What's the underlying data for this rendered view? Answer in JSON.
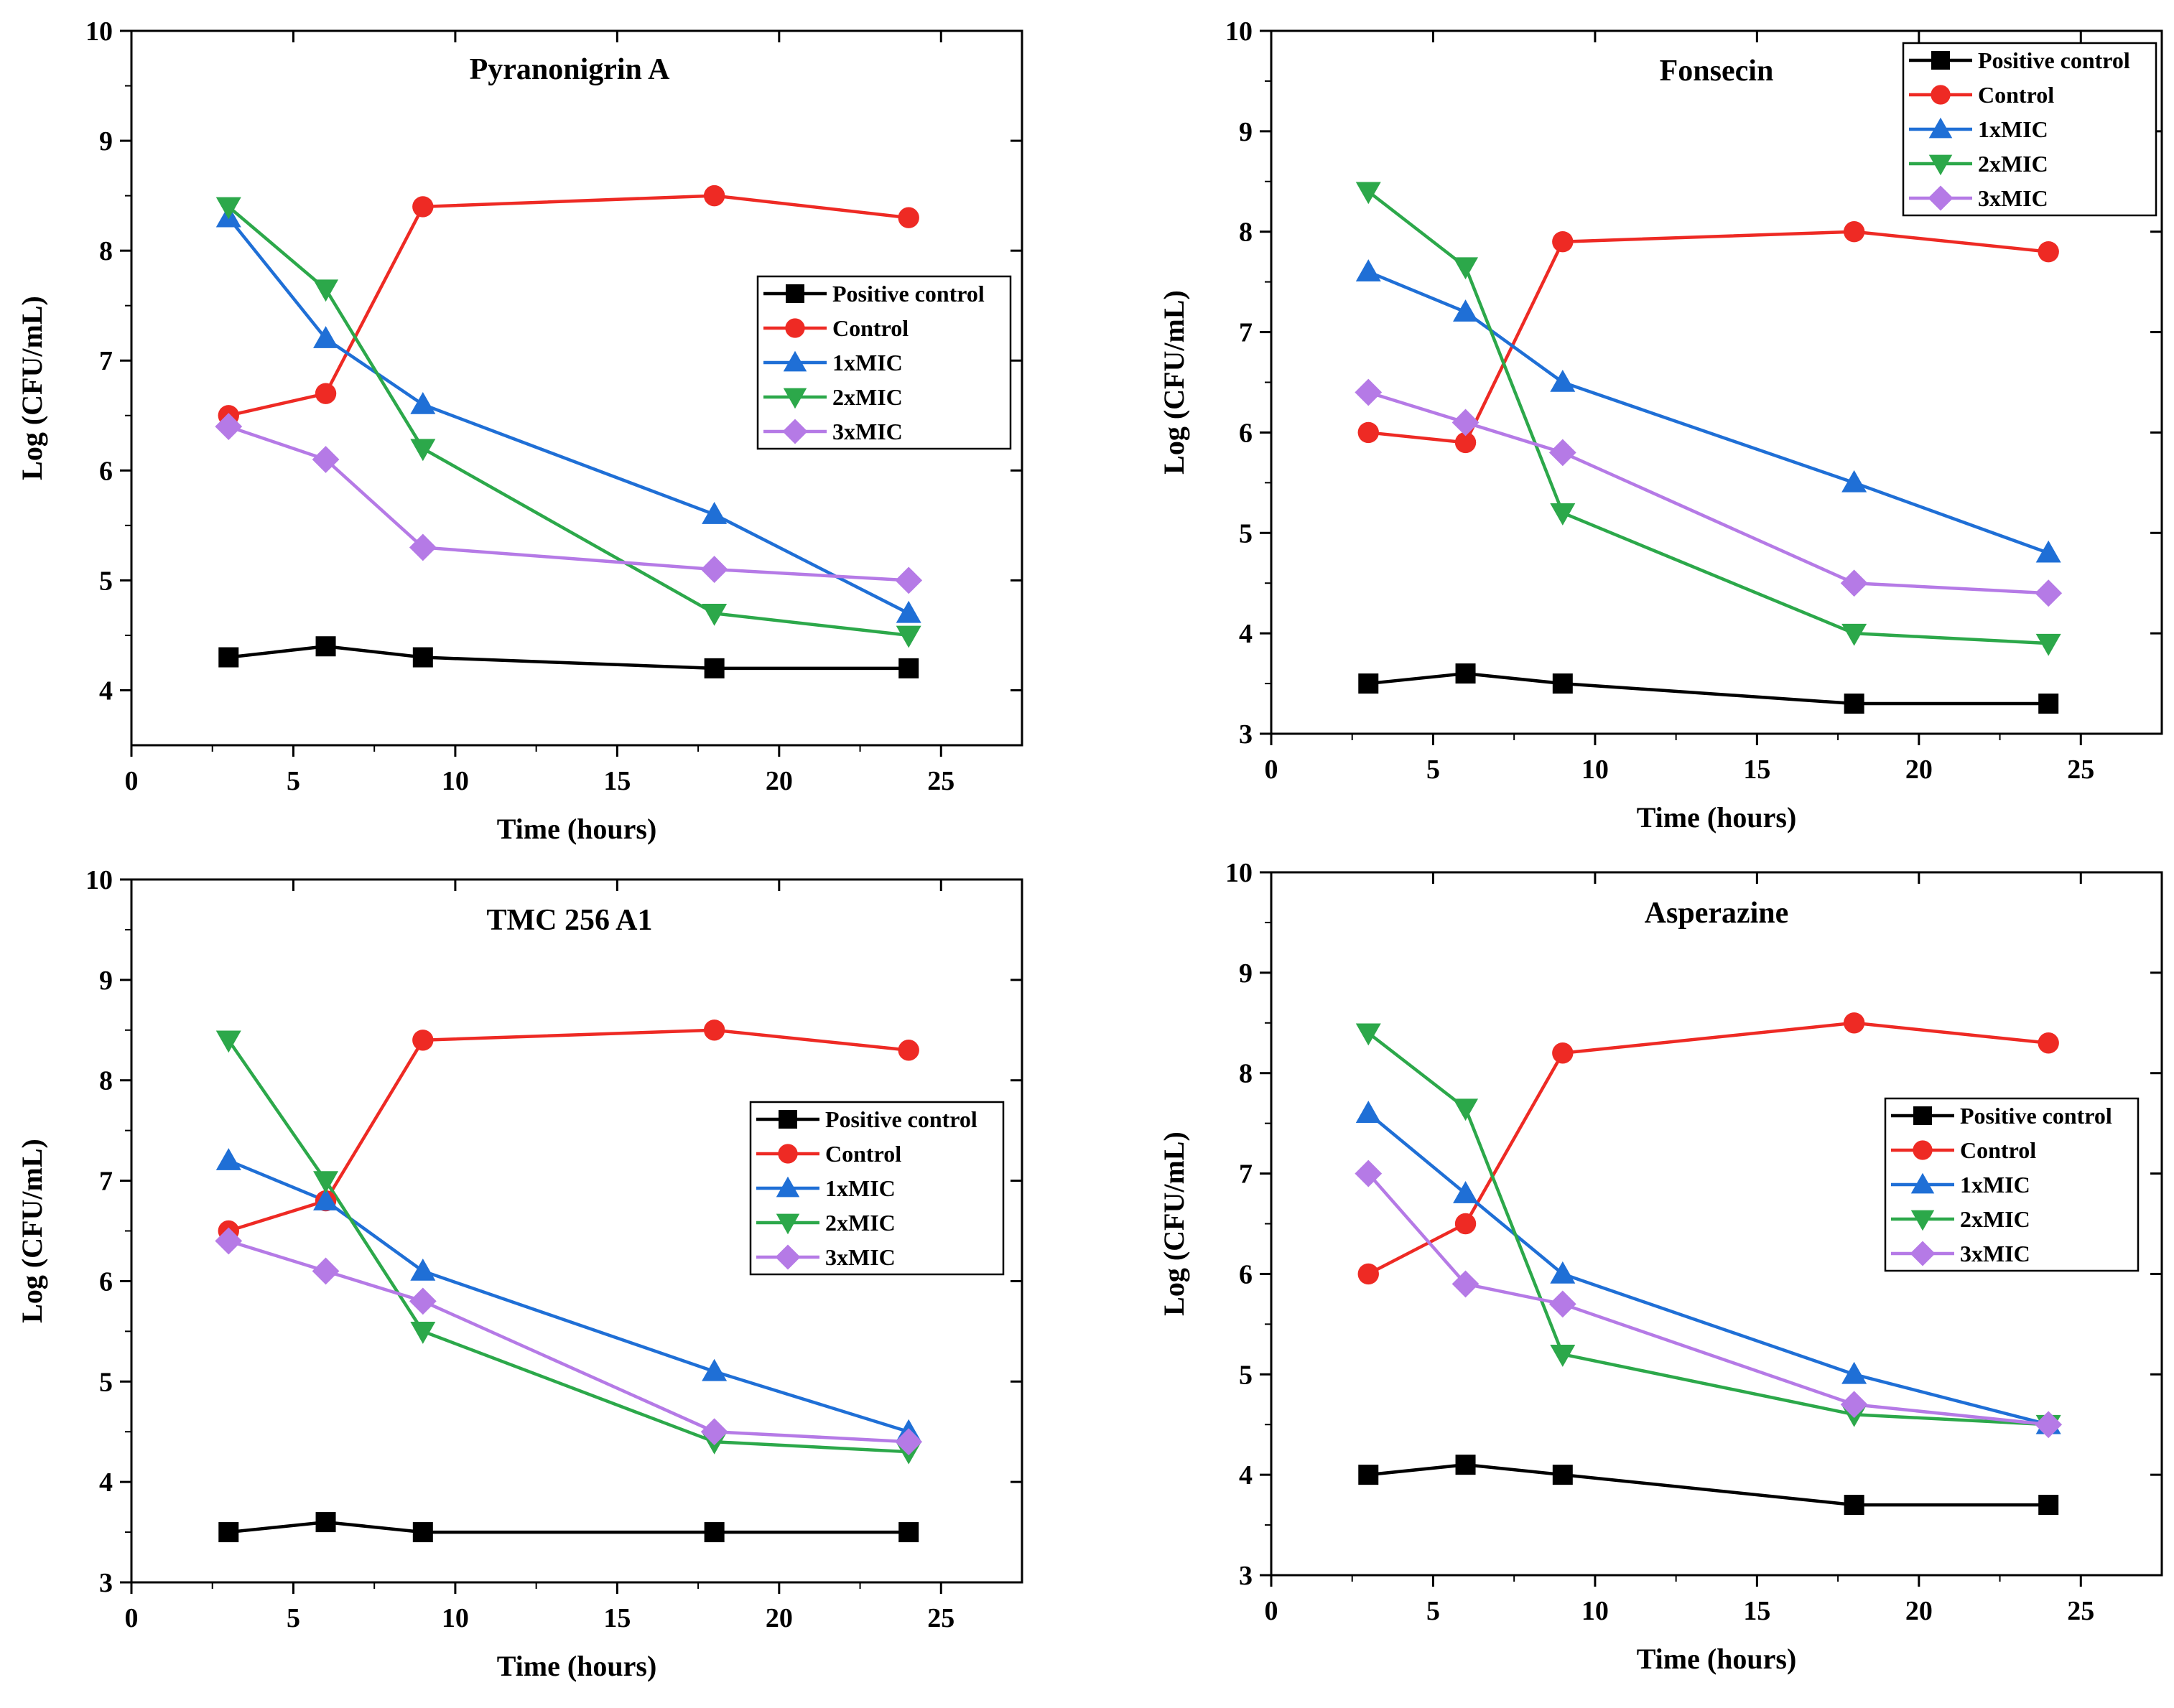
{
  "chart_data": [
    {
      "type": "line",
      "title": "Pyranonigrin A",
      "xlabel": "Time (hours)",
      "ylabel": "Log (CFU/mL)",
      "xlim": [
        0,
        27.5
      ],
      "ylim": [
        3.5,
        10
      ],
      "xticks": [
        0,
        5,
        10,
        15,
        20,
        25
      ],
      "yticks": [
        4,
        5,
        6,
        7,
        8,
        9,
        10
      ],
      "x": [
        3,
        6,
        9,
        18,
        24
      ],
      "legend_position": "right-middle",
      "series": [
        {
          "name": "Positive control",
          "values": [
            4.3,
            4.4,
            4.3,
            4.2,
            4.2
          ]
        },
        {
          "name": "Control",
          "values": [
            6.5,
            6.7,
            8.4,
            8.5,
            8.3
          ]
        },
        {
          "name": "1xMIC",
          "values": [
            8.3,
            7.2,
            6.6,
            5.6,
            4.7
          ]
        },
        {
          "name": "2xMIC",
          "values": [
            8.4,
            7.65,
            6.2,
            4.7,
            4.5
          ]
        },
        {
          "name": "3xMIC",
          "values": [
            6.4,
            6.1,
            5.3,
            5.1,
            5.0
          ]
        }
      ]
    },
    {
      "type": "line",
      "title": "Fonsecin",
      "xlabel": "Time (hours)",
      "ylabel": "Log (CFU/mL)",
      "xlim": [
        0,
        27.5
      ],
      "ylim": [
        3,
        10
      ],
      "xticks": [
        0,
        5,
        10,
        15,
        20,
        25
      ],
      "yticks": [
        3,
        4,
        5,
        6,
        7,
        8,
        9,
        10
      ],
      "x": [
        3,
        6,
        9,
        18,
        24
      ],
      "legend_position": "top-right",
      "series": [
        {
          "name": "Positive control",
          "values": [
            3.5,
            3.6,
            3.5,
            3.3,
            3.3
          ]
        },
        {
          "name": "Control",
          "values": [
            6.0,
            5.9,
            7.9,
            8.0,
            7.8
          ]
        },
        {
          "name": "1xMIC",
          "values": [
            7.6,
            7.2,
            6.5,
            5.5,
            4.8
          ]
        },
        {
          "name": "2xMIC",
          "values": [
            8.4,
            7.65,
            5.2,
            4.0,
            3.9
          ]
        },
        {
          "name": "3xMIC",
          "values": [
            6.4,
            6.1,
            5.8,
            4.5,
            4.4
          ]
        }
      ]
    },
    {
      "type": "line",
      "title": "TMC 256 A1",
      "xlabel": "Time (hours)",
      "ylabel": "Log (CFU/mL)",
      "xlim": [
        0,
        27.5
      ],
      "ylim": [
        3,
        10
      ],
      "xticks": [
        0,
        5,
        10,
        15,
        20,
        25
      ],
      "yticks": [
        3,
        4,
        5,
        6,
        7,
        8,
        9,
        10
      ],
      "x": [
        3,
        6,
        9,
        18,
        24
      ],
      "legend_position": "right-middle",
      "series": [
        {
          "name": "Positive control",
          "values": [
            3.5,
            3.6,
            3.5,
            3.5,
            3.5
          ]
        },
        {
          "name": "Control",
          "values": [
            6.5,
            6.8,
            8.4,
            8.5,
            8.3
          ]
        },
        {
          "name": "1xMIC",
          "values": [
            7.2,
            6.8,
            6.1,
            5.1,
            4.5
          ]
        },
        {
          "name": "2xMIC",
          "values": [
            8.4,
            7.0,
            5.5,
            4.4,
            4.3
          ]
        },
        {
          "name": "3xMIC",
          "values": [
            6.4,
            6.1,
            5.8,
            4.5,
            4.4
          ]
        }
      ]
    },
    {
      "type": "line",
      "title": "Asperazine",
      "xlabel": "Time (hours)",
      "ylabel": "Log (CFU/mL)",
      "xlim": [
        0,
        27.5
      ],
      "ylim": [
        3,
        10
      ],
      "xticks": [
        0,
        5,
        10,
        15,
        20,
        25
      ],
      "yticks": [
        3,
        4,
        5,
        6,
        7,
        8,
        9,
        10
      ],
      "x": [
        3,
        6,
        9,
        18,
        24
      ],
      "legend_position": "right-middle",
      "series": [
        {
          "name": "Positive control",
          "values": [
            4.0,
            4.1,
            4.0,
            3.7,
            3.7
          ]
        },
        {
          "name": "Control",
          "values": [
            6.0,
            6.5,
            8.2,
            8.5,
            8.3
          ]
        },
        {
          "name": "1xMIC",
          "values": [
            7.6,
            6.8,
            6.0,
            5.0,
            4.5
          ]
        },
        {
          "name": "2xMIC",
          "values": [
            8.4,
            7.65,
            5.2,
            4.6,
            4.5
          ]
        },
        {
          "name": "3xMIC",
          "values": [
            7.0,
            5.9,
            5.7,
            4.7,
            4.5
          ]
        }
      ]
    }
  ],
  "series_styles": [
    {
      "name": "Positive control",
      "color": "#000000",
      "marker": "square"
    },
    {
      "name": "Control",
      "color": "#ee2a24",
      "marker": "circle"
    },
    {
      "name": "1xMIC",
      "color": "#1f6fd6",
      "marker": "triangle-up"
    },
    {
      "name": "2xMIC",
      "color": "#2ca84a",
      "marker": "triangle-down"
    },
    {
      "name": "3xMIC",
      "color": "#b57ae6",
      "marker": "diamond"
    }
  ]
}
